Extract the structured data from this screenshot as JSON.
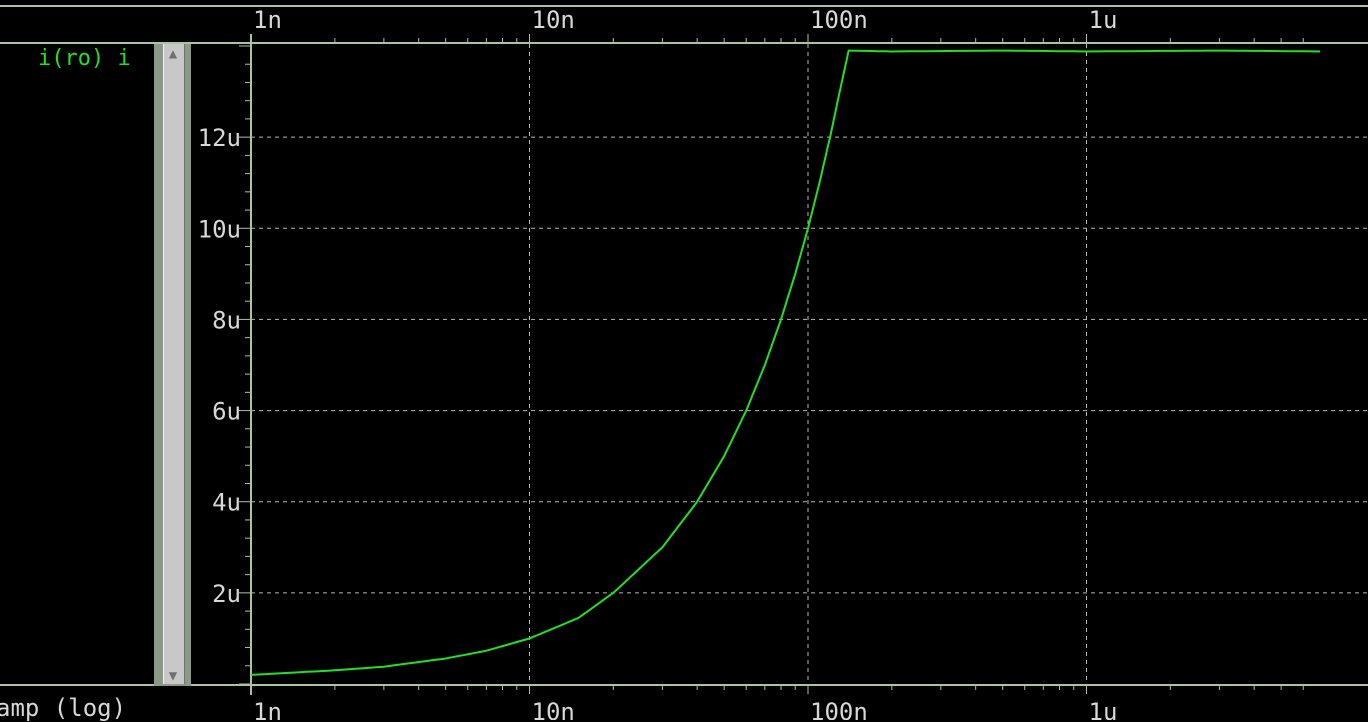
{
  "window": {
    "trace_name": "i(ro) i",
    "x_quantity_label": "amp (log)"
  },
  "colors": {
    "background": "#000000",
    "trace": "#22e022",
    "grid": "#b8b8b8",
    "axis_text": "#d8d8d8",
    "frame": "#a8c4a0"
  },
  "chart_data": {
    "type": "line",
    "x_scale": "log",
    "xlim": [
      1e-09,
      6.9e-06
    ],
    "ylim": [
      0,
      1.4e-05
    ],
    "grid": true,
    "x_tick_labels": [
      "1n",
      "10n",
      "100n",
      "1u"
    ],
    "x_ticks": [
      1e-09,
      1e-08,
      1e-07,
      1e-06
    ],
    "y_tick_labels": [
      "2u",
      "4u",
      "6u",
      "8u",
      "10u",
      "12u"
    ],
    "y_ticks": [
      2e-06,
      4e-06,
      6e-06,
      8e-06,
      1e-05,
      1.2e-05
    ],
    "series": [
      {
        "name": "i(ro)",
        "x": [
          1e-09,
          2e-09,
          3e-09,
          5e-09,
          7e-09,
          1e-08,
          1.5e-08,
          2e-08,
          3e-08,
          4e-08,
          5e-08,
          6e-08,
          7e-08,
          8e-08,
          9e-08,
          1e-07,
          1.1e-07,
          1.2e-07,
          1.3e-07,
          1.4e-07,
          2e-07,
          5e-07,
          1e-06,
          3e-06,
          6.9e-06
        ],
        "y": [
          2e-07,
          3e-07,
          3.8e-07,
          5.6e-07,
          7.3e-07,
          1e-06,
          1.45e-06,
          2e-06,
          3e-06,
          4e-06,
          5e-06,
          6e-06,
          7e-06,
          8e-06,
          9e-06,
          1e-05,
          1.1e-05,
          1.2e-05,
          1.3e-05,
          1.39e-05,
          1.388e-05,
          1.39e-05,
          1.388e-05,
          1.39e-05,
          1.388e-05
        ]
      }
    ]
  }
}
